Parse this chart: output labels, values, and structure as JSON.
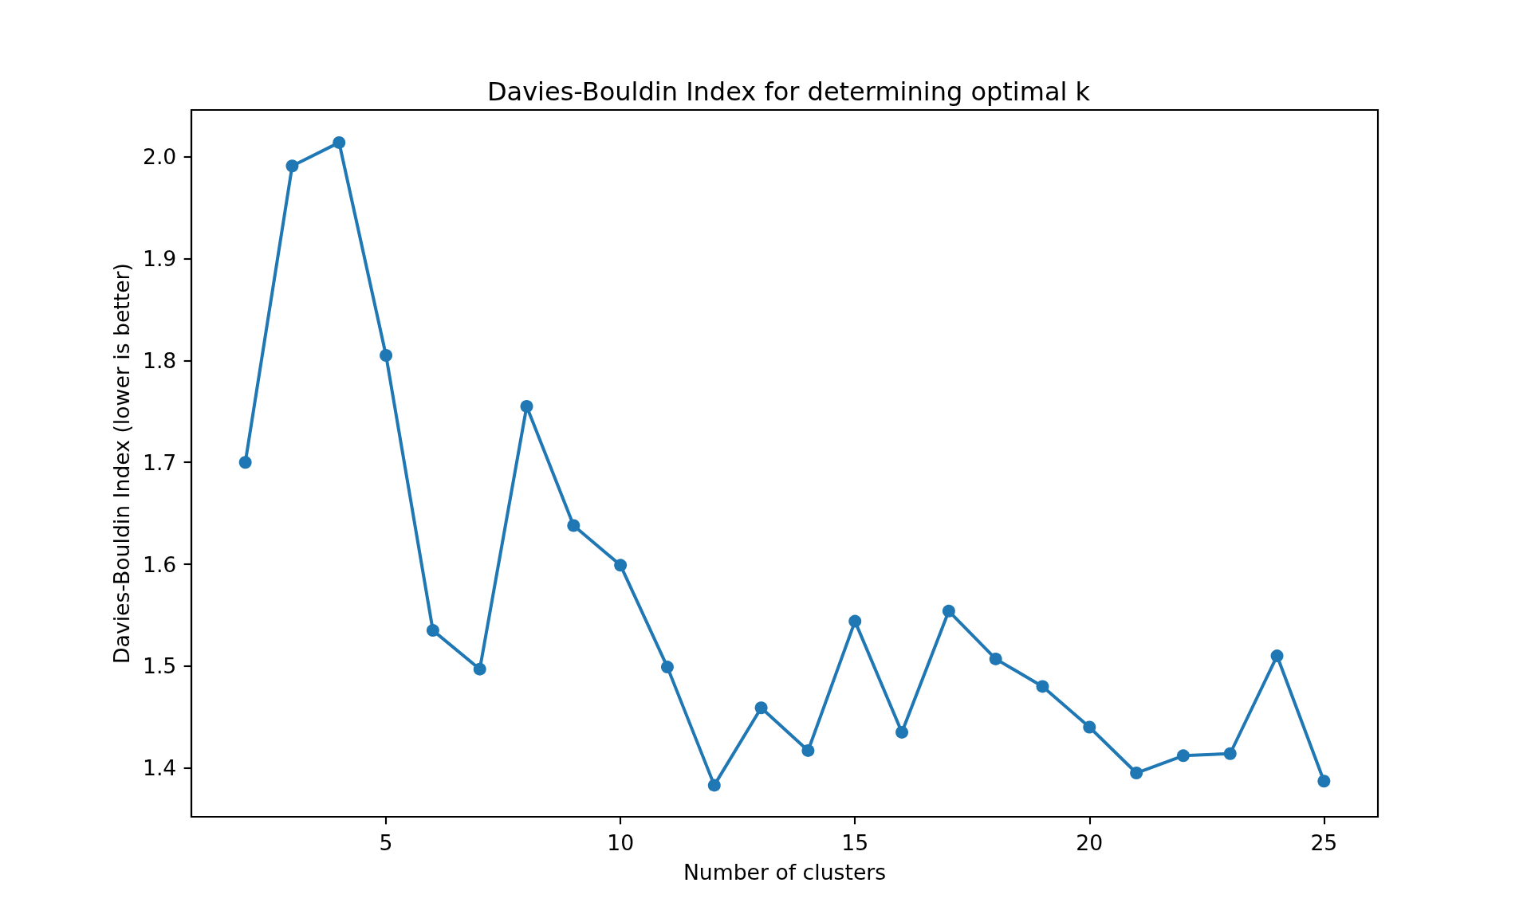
{
  "chart_data": {
    "type": "line",
    "title": "Davies-Bouldin Index for determining optimal k",
    "xlabel": "Number of clusters",
    "ylabel": "Davies-Bouldin Index (lower is better)",
    "x": [
      2,
      3,
      4,
      5,
      6,
      7,
      8,
      9,
      10,
      11,
      12,
      13,
      14,
      15,
      16,
      17,
      18,
      19,
      20,
      21,
      22,
      23,
      24,
      25
    ],
    "values": [
      1.7,
      1.991,
      2.014,
      1.805,
      1.535,
      1.497,
      1.755,
      1.638,
      1.599,
      1.499,
      1.383,
      1.459,
      1.417,
      1.544,
      1.435,
      1.554,
      1.507,
      1.48,
      1.44,
      1.395,
      1.412,
      1.414,
      1.51,
      1.387
    ],
    "color": "#1f77b4",
    "xlim": [
      0.85,
      26.15
    ],
    "xticks": [
      5,
      10,
      15,
      20,
      25
    ],
    "ylim": [
      1.352,
      2.046
    ],
    "yticks": [
      1.4,
      1.5,
      1.6,
      1.7,
      1.8,
      1.9,
      {
        "value": 2,
        "label": "2.0"
      }
    ],
    "grid": false,
    "marker": "circle",
    "line_style": "solid"
  }
}
